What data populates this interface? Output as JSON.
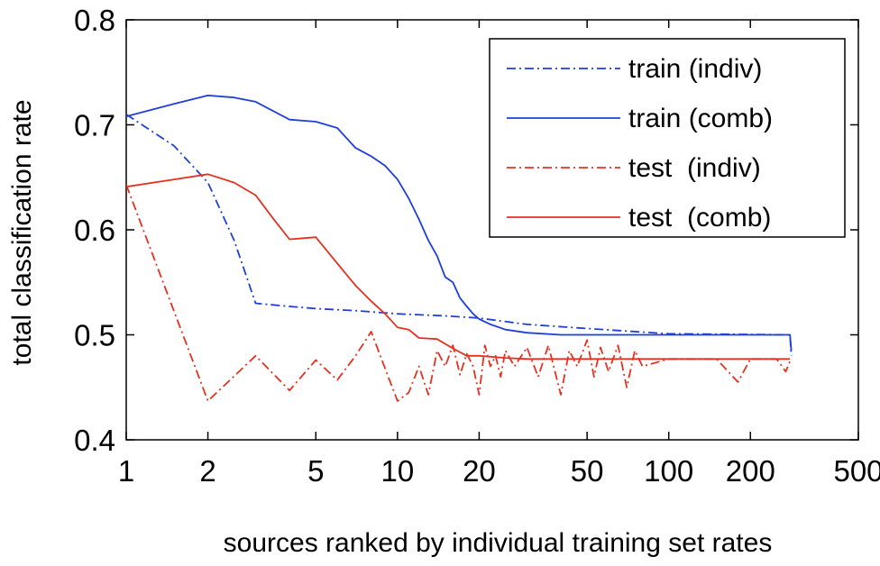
{
  "chart_data": {
    "type": "line",
    "xlabel": "sources ranked by individual training set rates",
    "ylabel": "total classification rate",
    "xscale": "log",
    "xlim": [
      1,
      500
    ],
    "ylim": [
      0.4,
      0.8
    ],
    "xticks": [
      1,
      2,
      5,
      10,
      20,
      50,
      100,
      200,
      500
    ],
    "xtick_labels": [
      "1",
      "2",
      "5",
      "10",
      "20",
      "50",
      "100",
      "200",
      "500"
    ],
    "yticks": [
      0.4,
      0.5,
      0.6,
      0.7,
      0.8
    ],
    "ytick_labels": [
      "0.4",
      "0.5",
      "0.6",
      "0.7",
      "0.8"
    ],
    "grid": false,
    "legend_position": "top-right",
    "series": [
      {
        "name": "train (indiv)",
        "color": "#1f3fd9",
        "style": "dashdot",
        "x": [
          1,
          1.5,
          2,
          2.5,
          3,
          4,
          5,
          7,
          10,
          15,
          20,
          30,
          50,
          100,
          280,
          283
        ],
        "y": [
          0.71,
          0.68,
          0.645,
          0.59,
          0.53,
          0.527,
          0.525,
          0.523,
          0.52,
          0.518,
          0.516,
          0.51,
          0.506,
          0.501,
          0.5,
          0.48
        ]
      },
      {
        "name": "train (comb)",
        "color": "#1f3fd9",
        "style": "solid",
        "x": [
          1,
          1.5,
          2,
          2.5,
          3,
          4,
          5,
          6,
          7,
          8,
          9,
          10,
          11,
          12,
          13,
          14,
          15,
          16,
          17,
          18,
          19,
          20,
          22,
          25,
          30,
          40,
          60,
          100,
          200,
          280,
          283
        ],
        "y": [
          0.708,
          0.72,
          0.728,
          0.726,
          0.722,
          0.705,
          0.703,
          0.697,
          0.678,
          0.67,
          0.661,
          0.648,
          0.63,
          0.61,
          0.59,
          0.575,
          0.555,
          0.55,
          0.535,
          0.527,
          0.52,
          0.515,
          0.51,
          0.505,
          0.502,
          0.5,
          0.5,
          0.5,
          0.5,
          0.5,
          0.485
        ]
      },
      {
        "name": "test  (indiv)",
        "color": "#e6311f",
        "style": "dashdot",
        "x": [
          1,
          2,
          3,
          4,
          5,
          6,
          7,
          8,
          9,
          10,
          11,
          12,
          13,
          14,
          15,
          16,
          17,
          18,
          19,
          20,
          21,
          22,
          23,
          24,
          25,
          27,
          30,
          33,
          36,
          40,
          43,
          46,
          50,
          53,
          56,
          60,
          65,
          70,
          75,
          80,
          100,
          150,
          180,
          200,
          250,
          270,
          280
        ],
        "y": [
          0.643,
          0.437,
          0.48,
          0.447,
          0.476,
          0.457,
          0.48,
          0.503,
          0.468,
          0.437,
          0.445,
          0.47,
          0.443,
          0.485,
          0.47,
          0.49,
          0.462,
          0.482,
          0.47,
          0.443,
          0.49,
          0.47,
          0.48,
          0.46,
          0.485,
          0.47,
          0.488,
          0.46,
          0.49,
          0.443,
          0.485,
          0.47,
          0.495,
          0.46,
          0.488,
          0.465,
          0.49,
          0.45,
          0.485,
          0.47,
          0.477,
          0.477,
          0.455,
          0.477,
          0.477,
          0.465,
          0.475
        ]
      },
      {
        "name": "test  (comb)",
        "color": "#e6311f",
        "style": "solid",
        "x": [
          1,
          1.5,
          2,
          2.5,
          3,
          3.5,
          4,
          4.5,
          5,
          6,
          7,
          8,
          9,
          10,
          11,
          12,
          14,
          16,
          18,
          20,
          25,
          30,
          40,
          60,
          100,
          200,
          280
        ],
        "y": [
          0.641,
          0.648,
          0.653,
          0.645,
          0.633,
          0.61,
          0.591,
          0.592,
          0.593,
          0.568,
          0.547,
          0.532,
          0.52,
          0.507,
          0.505,
          0.497,
          0.496,
          0.487,
          0.48,
          0.48,
          0.478,
          0.477,
          0.477,
          0.477,
          0.477,
          0.477,
          0.477
        ]
      }
    ]
  }
}
